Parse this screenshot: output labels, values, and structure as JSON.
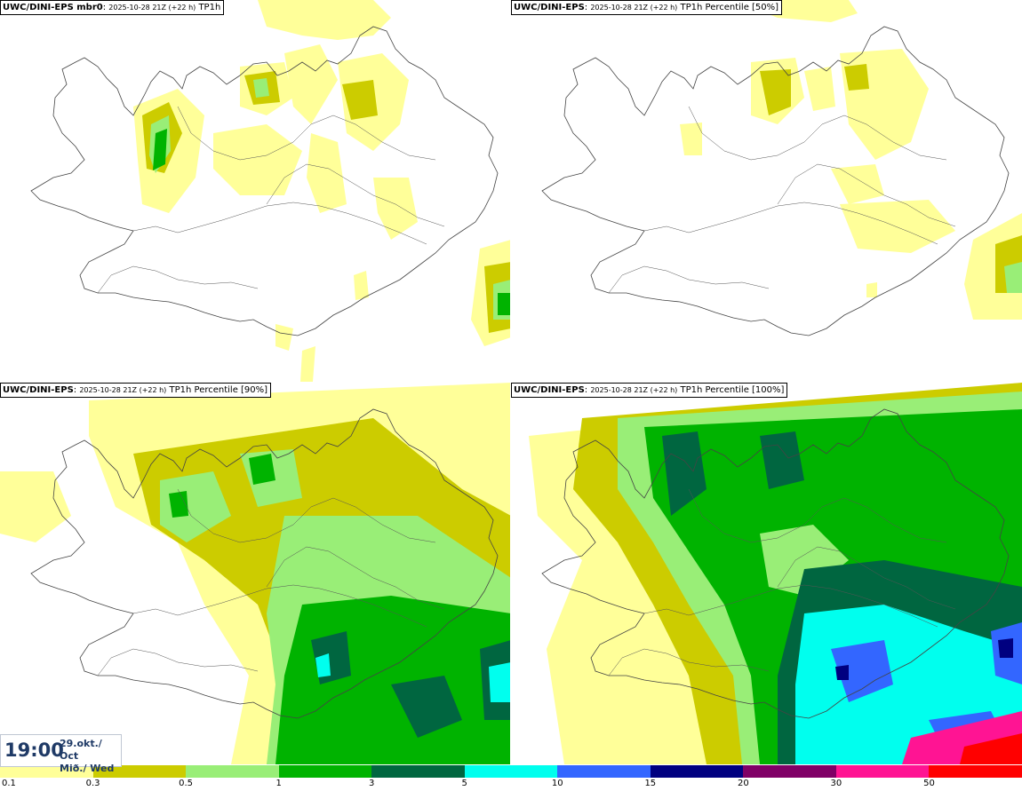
{
  "panels": {
    "top_left": {
      "model": "UWC/DINI-EPS mbr0",
      "run": "2025-10-28 21Z (+22 h)",
      "field": "TP1h"
    },
    "top_right": {
      "model": "UWC/DINI-EPS",
      "run": "2025-10-28 21Z (+22 h)",
      "field": "TP1h Percentile [50%]"
    },
    "bottom_left": {
      "model": "UWC/DINI-EPS",
      "run": "2025-10-28 21Z (+22 h)",
      "field": "TP1h Percentile [90%]"
    },
    "bottom_right": {
      "model": "UWC/DINI-EPS",
      "run": "2025-10-28 21Z (+22 h)",
      "field": "TP1h Percentile [100%]"
    }
  },
  "valid_time": {
    "time": "19:00",
    "date_line1": "29.okt./ Oct",
    "date_line2": "Mið./ Wed"
  },
  "legend": {
    "labels": [
      "0.1",
      "0.3",
      "0.5",
      "1",
      "3",
      "5",
      "10",
      "15",
      "20",
      "30",
      "50"
    ],
    "colors": [
      "#ffff99",
      "#cccc00",
      "#99ee77",
      "#00b300",
      "#006640",
      "#00ffee",
      "#3366ff",
      "#000080",
      "#800066",
      "#ff1493",
      "#ff0000"
    ]
  }
}
